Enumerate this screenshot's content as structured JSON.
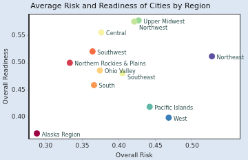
{
  "chart_data": {
    "type": "scatter",
    "title": "Average Risk and Readiness of Cities by Region",
    "x_label": "Overall Risk",
    "y_label": "Overall Readiness",
    "point_labels": [
      "Upper Midwest",
      "Northwest",
      "Central",
      "Southwest",
      "Northeast",
      "Northern Rockies & Plains",
      "Ohio Valley",
      "Southeast",
      "South",
      "Pacific Islands",
      "West",
      "Alaska Region"
    ],
    "x": [
      0.427,
      0.421,
      0.376,
      0.364,
      0.527,
      0.333,
      0.374,
      0.405,
      0.366,
      0.442,
      0.468,
      0.288
    ],
    "values": [
      0.578,
      0.576,
      0.556,
      0.521,
      0.512,
      0.5,
      0.486,
      0.481,
      0.459,
      0.419,
      0.399,
      0.37
    ],
    "colors": [
      "#9bd89b",
      "#c4e69a",
      "#f7f2a4",
      "#f46d43",
      "#5e4fa2",
      "#d53e4f",
      "#fdd17f",
      "#eef49e",
      "#f99853",
      "#5fb7a5",
      "#3a7fb8",
      "#9e0142"
    ],
    "xlim": [
      0.277,
      0.565
    ],
    "ylim": [
      0.36,
      0.59
    ],
    "xticks": [
      {
        "value": 0.3,
        "label": "0.30"
      },
      {
        "value": 0.35,
        "label": "0.35"
      },
      {
        "value": 0.4,
        "label": "0.40"
      },
      {
        "value": 0.45,
        "label": "0.45"
      },
      {
        "value": 0.5,
        "label": "0.50"
      }
    ],
    "yticks": [
      {
        "value": 0.4,
        "label": "0.40"
      },
      {
        "value": 0.45,
        "label": "0.45"
      },
      {
        "value": 0.5,
        "label": "0.50"
      },
      {
        "value": 0.55,
        "label": "0.55"
      }
    ],
    "grid": false,
    "marker": "circle"
  }
}
